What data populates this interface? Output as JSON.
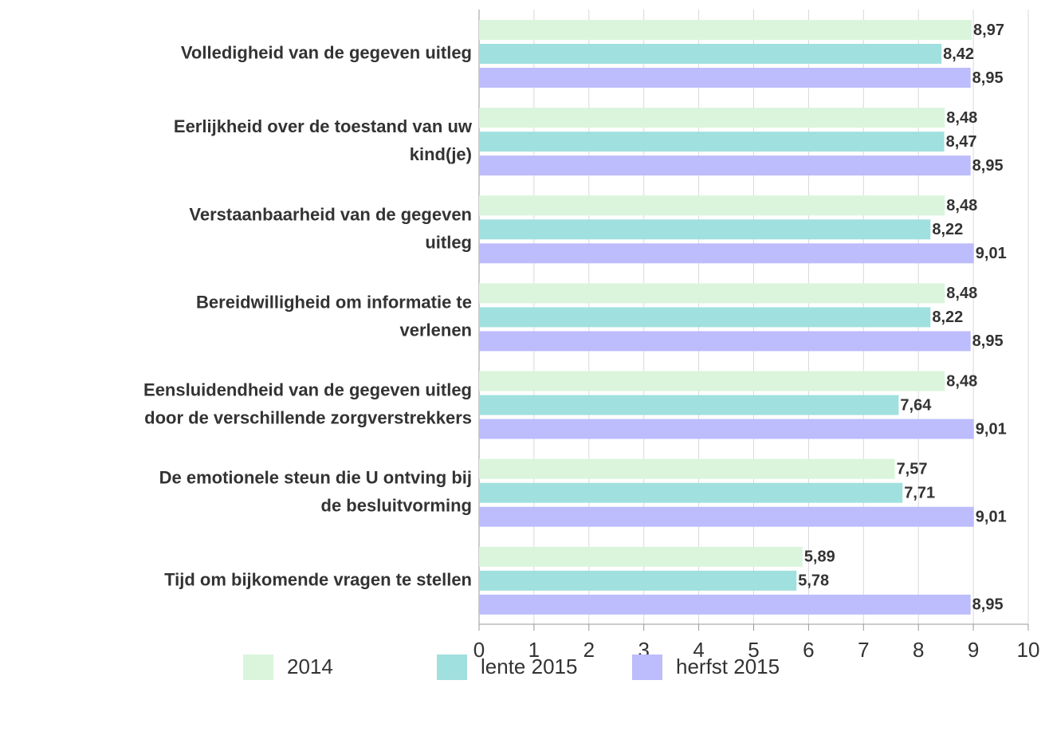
{
  "chart_data": {
    "type": "bar",
    "orientation": "horizontal",
    "categories": [
      "Volledigheid van de gegeven uitleg",
      "Eerlijkheid over de toestand van uw\nkind(je)",
      "Verstaanbaarheid van de gegeven\nuitleg",
      "Bereidwilligheid om informatie te\nverlenen",
      "Eensluidendheid van de gegeven uitleg\ndoor de verschillende zorgverstrekkers",
      "De emotionele steun die U ontving bij\nde besluitvorming",
      "Tijd om bijkomende vragen te stellen"
    ],
    "series": [
      {
        "name": "2014",
        "color": "#daf5dc",
        "values": [
          8.97,
          8.48,
          8.48,
          8.48,
          8.48,
          7.57,
          5.89
        ],
        "value_labels": [
          "8,97",
          "8,48",
          "8,48",
          "8,48",
          "8,48",
          "7,57",
          "5,89"
        ]
      },
      {
        "name": "lente 2015",
        "color": "#a0e0de",
        "values": [
          8.42,
          8.47,
          8.22,
          8.22,
          7.64,
          7.71,
          5.78
        ],
        "value_labels": [
          "8,42",
          "8,47",
          "8,22",
          "8,22",
          "7,64",
          "7,71",
          "5,78"
        ]
      },
      {
        "name": "herfst 2015",
        "color": "#bdbcfc",
        "values": [
          8.95,
          8.95,
          9.01,
          8.95,
          9.01,
          9.01,
          8.95
        ],
        "value_labels": [
          "8,95",
          "8,95",
          "9,01",
          "8,95",
          "9,01",
          "9,01",
          "8,95"
        ]
      }
    ],
    "xlim": [
      0,
      10
    ],
    "xticks": [
      0,
      1,
      2,
      3,
      4,
      5,
      6,
      7,
      8,
      9,
      10
    ],
    "grid": true,
    "legend": "bottom"
  }
}
